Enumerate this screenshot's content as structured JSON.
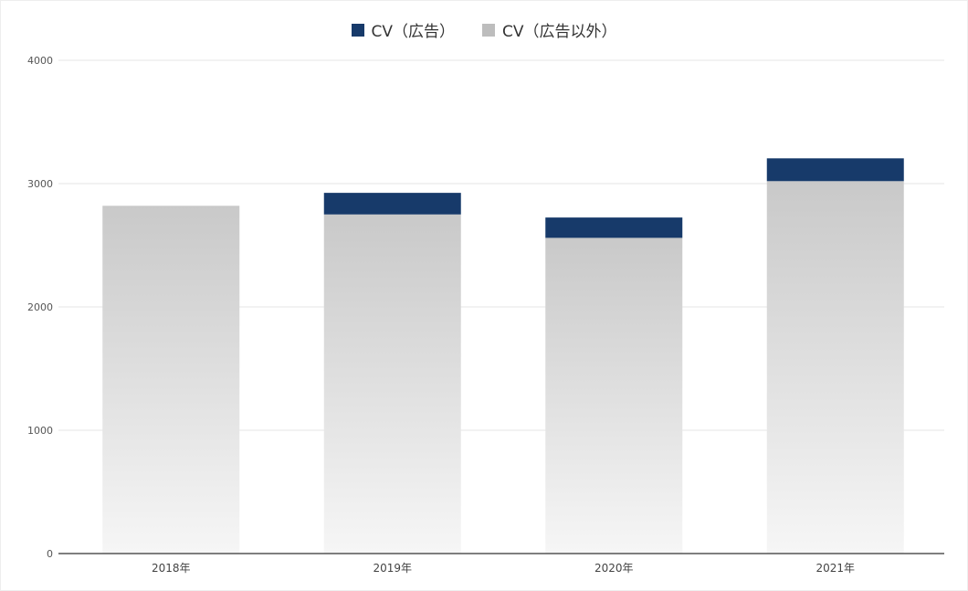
{
  "colors": {
    "ad": "#173a6a",
    "non_ad": "#bdbdbd",
    "grid": "#e6e6e6",
    "axis": "#555555"
  },
  "chart_data": {
    "type": "bar",
    "stacked": true,
    "categories": [
      "2018年",
      "2019年",
      "2020年",
      "2021年"
    ],
    "series": [
      {
        "name": "CV（広告以外）",
        "values": [
          2820,
          2750,
          2560,
          3020
        ],
        "color": "#bdbdbd"
      },
      {
        "name": "CV（広告）",
        "values": [
          0,
          175,
          165,
          185
        ],
        "color": "#173a6a"
      }
    ],
    "legend": [
      {
        "name": "CV（広告）",
        "color": "#173a6a"
      },
      {
        "name": "CV（広告以外）",
        "color": "#bdbdbd"
      }
    ],
    "legend_position": "top-center",
    "ylim": [
      0,
      4000
    ],
    "yticks": [
      "0",
      "1000",
      "2000",
      "3000",
      "4000"
    ],
    "ytick_values": [
      0,
      1000,
      2000,
      3000,
      4000
    ],
    "grid": true,
    "title": "",
    "xlabel": "",
    "ylabel": ""
  }
}
